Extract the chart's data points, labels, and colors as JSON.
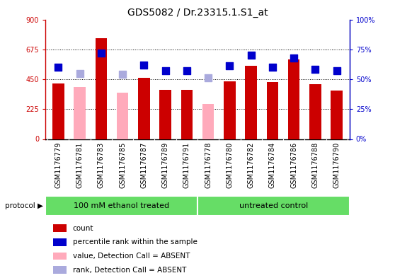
{
  "title": "GDS5082 / Dr.23315.1.S1_at",
  "samples": [
    "GSM1176779",
    "GSM1176781",
    "GSM1176783",
    "GSM1176785",
    "GSM1176787",
    "GSM1176789",
    "GSM1176791",
    "GSM1176778",
    "GSM1176780",
    "GSM1176782",
    "GSM1176784",
    "GSM1176786",
    "GSM1176788",
    "GSM1176790"
  ],
  "count_values": [
    420,
    null,
    760,
    null,
    460,
    370,
    370,
    null,
    435,
    550,
    430,
    600,
    415,
    365
  ],
  "rank_values": [
    60,
    55,
    72,
    54,
    62,
    57,
    57,
    51,
    61,
    70,
    60,
    68,
    58,
    57
  ],
  "rank_is_absent": [
    false,
    true,
    false,
    true,
    false,
    false,
    false,
    true,
    false,
    false,
    false,
    false,
    false,
    false
  ],
  "absent_count": [
    null,
    390,
    null,
    350,
    null,
    null,
    null,
    265,
    null,
    null,
    null,
    null,
    null,
    null
  ],
  "group1_label": "100 mM ethanol treated",
  "group2_label": "untreated control",
  "group1_count": 7,
  "group2_count": 7,
  "ylim_left": [
    0,
    900
  ],
  "ylim_right": [
    0,
    100
  ],
  "yticks_left": [
    0,
    225,
    450,
    675,
    900
  ],
  "yticks_right": [
    0,
    25,
    50,
    75,
    100
  ],
  "legend_items": [
    {
      "label": "count",
      "color": "#cc0000"
    },
    {
      "label": "percentile rank within the sample",
      "color": "#0000cc"
    },
    {
      "label": "value, Detection Call = ABSENT",
      "color": "#ffaabb"
    },
    {
      "label": "rank, Detection Call = ABSENT",
      "color": "#aaaadd"
    }
  ],
  "red_dark": "#cc0000",
  "red_light": "#ffaabb",
  "blue_dark": "#0000cc",
  "blue_light": "#aaaadd",
  "title_fontsize": 10,
  "tick_fontsize": 7,
  "legend_fontsize": 7.5
}
